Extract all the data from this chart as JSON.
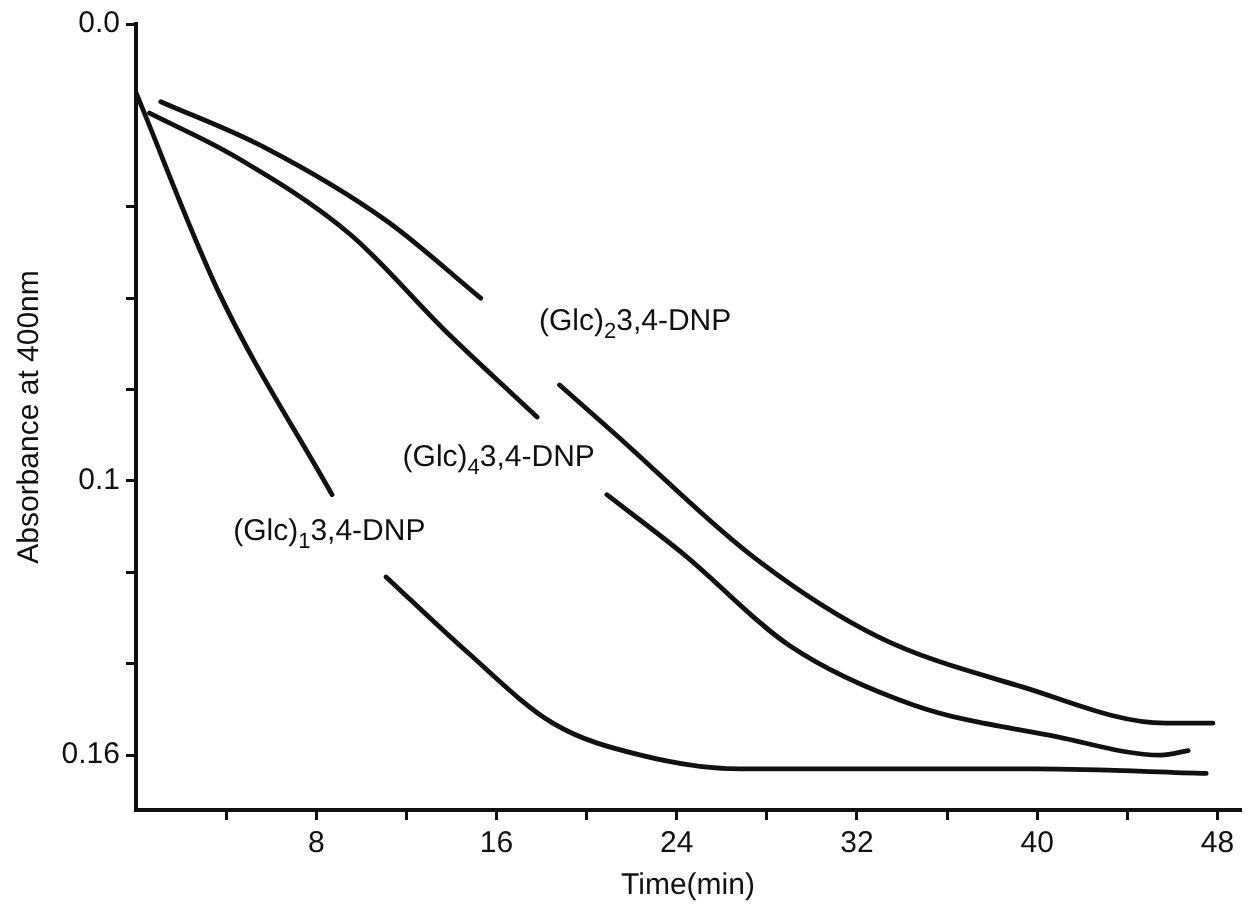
{
  "chart_data": {
    "type": "line",
    "xlabel": "Time(min)",
    "ylabel": "Absorbance at 400nm",
    "xlim": [
      0,
      49
    ],
    "xticks": [
      {
        "value": 4,
        "label": null
      },
      8,
      {
        "value": 12,
        "label": null
      },
      16,
      {
        "value": 20,
        "label": null
      },
      24,
      {
        "value": 28,
        "label": null
      },
      32,
      {
        "value": 36,
        "label": null
      },
      40,
      {
        "value": 44,
        "label": null
      },
      48
    ],
    "ylim": [
      0.172,
      0
    ],
    "yticks": [
      {
        "value": 0,
        "label": "0.0"
      },
      {
        "value": 0.04,
        "label": null
      },
      {
        "value": 0.06,
        "label": null
      },
      {
        "value": 0.08,
        "label": null
      },
      0.1,
      {
        "value": 0.12,
        "label": null
      },
      {
        "value": 0.14,
        "label": null
      },
      0.16
    ],
    "grid": false,
    "legend": false,
    "marker": "none",
    "line_style": "solid",
    "series": [
      {
        "name": "(Glc)$_{1}$3,4-DNP",
        "color": "#111111",
        "x": [
          0,
          3.7,
          8.7,
          10,
          11.1,
          14.6,
          18.5,
          22.4,
          26.8,
          32,
          40,
          47.5
        ],
        "values": [
          0.015,
          0.059,
          0.103,
          null,
          0.121,
          0.137,
          0.153,
          0.16,
          0.163,
          0.163,
          0.163,
          0.164
        ]
      },
      {
        "name": "(Glc)$_{2}$3,4-DNP",
        "color": "#111111",
        "x": [
          1.1,
          5.7,
          11.1,
          15.3,
          17,
          18.8,
          21.1,
          27.5,
          32.9,
          39.3,
          45.7,
          47.8
        ],
        "values": [
          0.017,
          0.027,
          0.043,
          0.06,
          null,
          0.079,
          0.089,
          0.117,
          0.134,
          0.145,
          0.153,
          0.153
        ]
      },
      {
        "name": "(Glc)$_{4}$3,4-DNP",
        "color": "#111111",
        "x": [
          0.6,
          4.4,
          9.5,
          13.7,
          17.8,
          19.3,
          20.9,
          24.3,
          29,
          34.5,
          40.9,
          45.5,
          46.7
        ],
        "values": [
          0.0195,
          0.029,
          0.046,
          0.067,
          0.086,
          null,
          0.103,
          0.116,
          0.136,
          0.149,
          0.156,
          0.16,
          0.159
        ]
      }
    ]
  }
}
